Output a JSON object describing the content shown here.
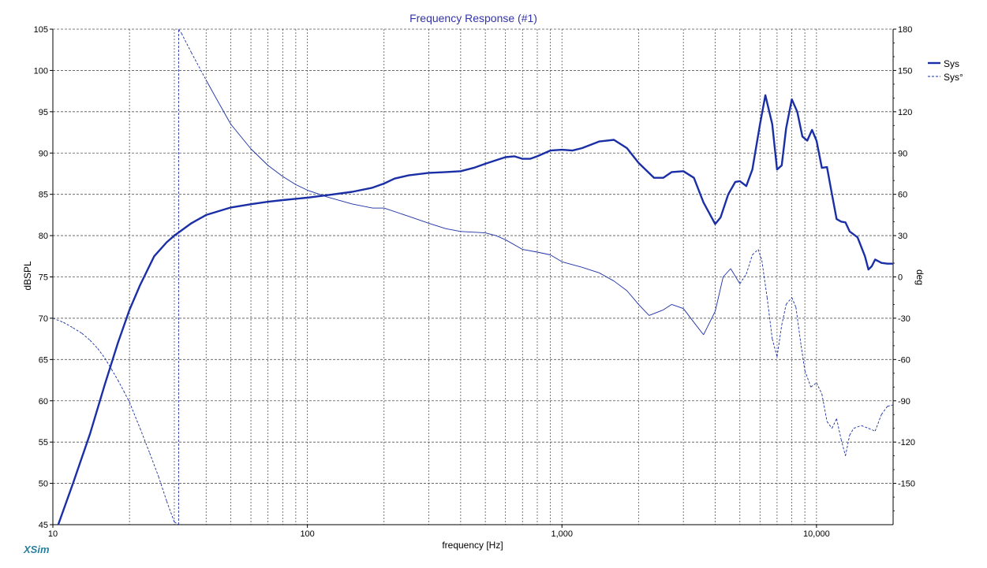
{
  "brand": "XSim",
  "chart_data": {
    "type": "line",
    "title": "Frequency Response (#1)",
    "xlabel": "frequency [Hz]",
    "ylabel": "dBSPL",
    "y2label": "deg",
    "x_scale": "log",
    "xlim": [
      10,
      20000
    ],
    "ylim": [
      45,
      105
    ],
    "y2lim": [
      -180,
      180
    ],
    "x_ticks": [
      10,
      100,
      1000,
      10000
    ],
    "x_tick_labels": [
      "10",
      "100",
      "1,000",
      "10,000"
    ],
    "y_ticks": [
      45,
      50,
      55,
      60,
      65,
      70,
      75,
      80,
      85,
      90,
      95,
      100,
      105
    ],
    "y2_ticks": [
      -150,
      -120,
      -90,
      -60,
      -30,
      0,
      30,
      60,
      90,
      120,
      150,
      180
    ],
    "grid": true,
    "legend_position": "top-right",
    "colors": {
      "series": "#1a2fa6",
      "grid": "#555555",
      "brand": "#2a7f9f",
      "title": "#3333aa"
    },
    "series": [
      {
        "name": "Sys",
        "axis": "left",
        "style": "solid",
        "x": [
          10.5,
          12,
          14,
          16,
          18,
          20,
          22,
          25,
          28,
          30,
          35,
          40,
          50,
          60,
          70,
          80,
          100,
          120,
          150,
          180,
          200,
          220,
          250,
          300,
          350,
          400,
          450,
          500,
          600,
          650,
          700,
          750,
          800,
          900,
          1000,
          1100,
          1200,
          1400,
          1600,
          1800,
          2000,
          2300,
          2500,
          2700,
          3000,
          3300,
          3600,
          4000,
          4200,
          4500,
          4800,
          5000,
          5300,
          5600,
          6000,
          6300,
          6700,
          7000,
          7300,
          7600,
          8000,
          8400,
          8800,
          9200,
          9600,
          10000,
          10500,
          11000,
          11500,
          12000,
          12500,
          13000,
          13500,
          14500,
          15500,
          16000,
          16500,
          17000,
          17500,
          18000,
          19000,
          20000
        ],
        "y": [
          45,
          50,
          56,
          62,
          67,
          71,
          74,
          77.5,
          79.2,
          80,
          81.5,
          82.5,
          83.4,
          83.8,
          84.1,
          84.3,
          84.6,
          84.9,
          85.3,
          85.8,
          86.3,
          86.9,
          87.3,
          87.6,
          87.7,
          87.8,
          88.2,
          88.7,
          89.5,
          89.6,
          89.3,
          89.3,
          89.6,
          90.3,
          90.4,
          90.3,
          90.6,
          91.4,
          91.6,
          90.6,
          88.8,
          87,
          87,
          87.7,
          87.8,
          87,
          84,
          81.4,
          82.2,
          85,
          86.5,
          86.6,
          86,
          88,
          93.5,
          97,
          93.5,
          88,
          88.5,
          93,
          96.5,
          95,
          92,
          91.5,
          92.8,
          91.5,
          88.2,
          88.3,
          85,
          82,
          81.7,
          81.6,
          80.5,
          79.8,
          77.5,
          75.9,
          76.3,
          77.1,
          76.9,
          76.7,
          76.6,
          76.6
        ]
      },
      {
        "name": "Sys°",
        "axis": "right",
        "style": "mixed",
        "x": [
          10,
          11,
          12,
          13,
          14,
          15,
          16,
          17,
          18,
          19,
          20,
          22,
          24,
          26,
          28,
          30,
          31.2,
          31.2,
          32,
          35,
          40,
          45,
          50,
          60,
          70,
          80,
          90,
          100,
          120,
          150,
          180,
          200,
          250,
          300,
          350,
          400,
          500,
          550,
          600,
          700,
          800,
          900,
          1000,
          1200,
          1400,
          1600,
          1800,
          2000,
          2200,
          2500,
          2700,
          3000,
          3300,
          3600,
          4000,
          4300,
          4600,
          5000,
          5300,
          5600,
          5900,
          6100,
          6400,
          6700,
          7000,
          7300,
          7600,
          8000,
          8300,
          8700,
          9000,
          9500,
          10000,
          10500,
          11000,
          11500,
          12000,
          12500,
          13000,
          13500,
          14000,
          15000,
          16000,
          17000,
          18000,
          19000,
          20000
        ],
        "y": [
          -30,
          -33,
          -37,
          -41,
          -46,
          -52,
          -59,
          -67,
          -75,
          -83,
          -91,
          -110,
          -128,
          -145,
          -163,
          -178,
          -180,
          180,
          177,
          163,
          143,
          126,
          111,
          93,
          81,
          73,
          67,
          63,
          58,
          53,
          50,
          50,
          44,
          39,
          35,
          33,
          32,
          30,
          27,
          20,
          18,
          16,
          11,
          7,
          3,
          -3,
          -10,
          -20,
          -28,
          -24,
          -20,
          -23,
          -33,
          -42,
          -25,
          0,
          6,
          -5,
          2,
          16,
          20,
          12,
          -15,
          -45,
          -58,
          -35,
          -20,
          -15,
          -22,
          -50,
          -68,
          -80,
          -77,
          -85,
          -105,
          -110,
          -103,
          -118,
          -130,
          -115,
          -110,
          -108,
          -110,
          -112,
          -100,
          -94,
          -93
        ],
        "solid_range_hz": [
          40,
          5000
        ]
      }
    ]
  }
}
